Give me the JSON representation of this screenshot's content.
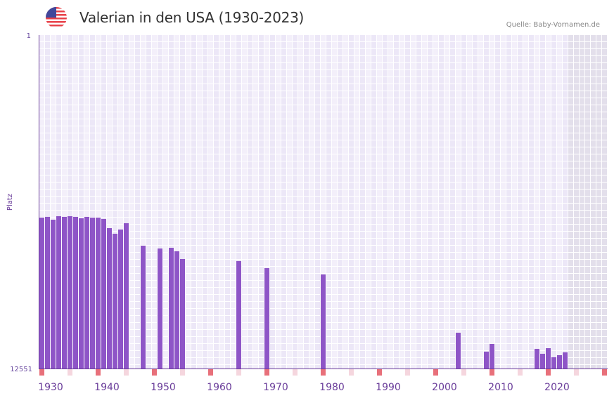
{
  "header": {
    "title": "Valerian in den USA (1930-2023)",
    "source": "Quelle: Baby-Vornamen.de",
    "flag_icon": "us-flag-icon"
  },
  "colors": {
    "bar": "#8e55c7",
    "axis": "#6a3d9a",
    "cell_a": "#f3effa",
    "cell_b": "#ece7f7",
    "future": "#e3dfeb",
    "marker_strong": "#e8707a",
    "marker_light": "#f5d6de"
  },
  "chart_data": {
    "type": "bar",
    "title": "Valerian in den USA (1930-2023)",
    "xlabel": "",
    "ylabel": "Platz",
    "ylim": [
      12551,
      1
    ],
    "yticks": [
      "1",
      "12551"
    ],
    "xlim": [
      1930,
      2030
    ],
    "xticks": [
      "1930",
      "1940",
      "1950",
      "1960",
      "1970",
      "1980",
      "1990",
      "2000",
      "2010",
      "2020"
    ],
    "future_from": 2024,
    "points": [
      {
        "year": 1930,
        "rank": 6870
      },
      {
        "year": 1931,
        "rank": 6843
      },
      {
        "year": 1932,
        "rank": 6949
      },
      {
        "year": 1933,
        "rank": 6817
      },
      {
        "year": 1934,
        "rank": 6843
      },
      {
        "year": 1935,
        "rank": 6817
      },
      {
        "year": 1936,
        "rank": 6843
      },
      {
        "year": 1937,
        "rank": 6896
      },
      {
        "year": 1938,
        "rank": 6843
      },
      {
        "year": 1939,
        "rank": 6870
      },
      {
        "year": 1940,
        "rank": 6870
      },
      {
        "year": 1941,
        "rank": 6922
      },
      {
        "year": 1942,
        "rank": 7266
      },
      {
        "year": 1943,
        "rank": 7478
      },
      {
        "year": 1944,
        "rank": 7319
      },
      {
        "year": 1945,
        "rank": 7081
      },
      {
        "year": 1948,
        "rank": 7927
      },
      {
        "year": 1951,
        "rank": 8033
      },
      {
        "year": 1953,
        "rank": 8007
      },
      {
        "year": 1954,
        "rank": 8138
      },
      {
        "year": 1955,
        "rank": 8429
      },
      {
        "year": 1965,
        "rank": 8508
      },
      {
        "year": 1970,
        "rank": 8772
      },
      {
        "year": 1980,
        "rank": 9010
      },
      {
        "year": 2004,
        "rank": 11203
      },
      {
        "year": 2009,
        "rank": 11916
      },
      {
        "year": 2010,
        "rank": 11626
      },
      {
        "year": 2018,
        "rank": 11811
      },
      {
        "year": 2019,
        "rank": 11996
      },
      {
        "year": 2020,
        "rank": 11785
      },
      {
        "year": 2021,
        "rank": 12128
      },
      {
        "year": 2022,
        "rank": 12049
      },
      {
        "year": 2023,
        "rank": 11943
      }
    ]
  }
}
